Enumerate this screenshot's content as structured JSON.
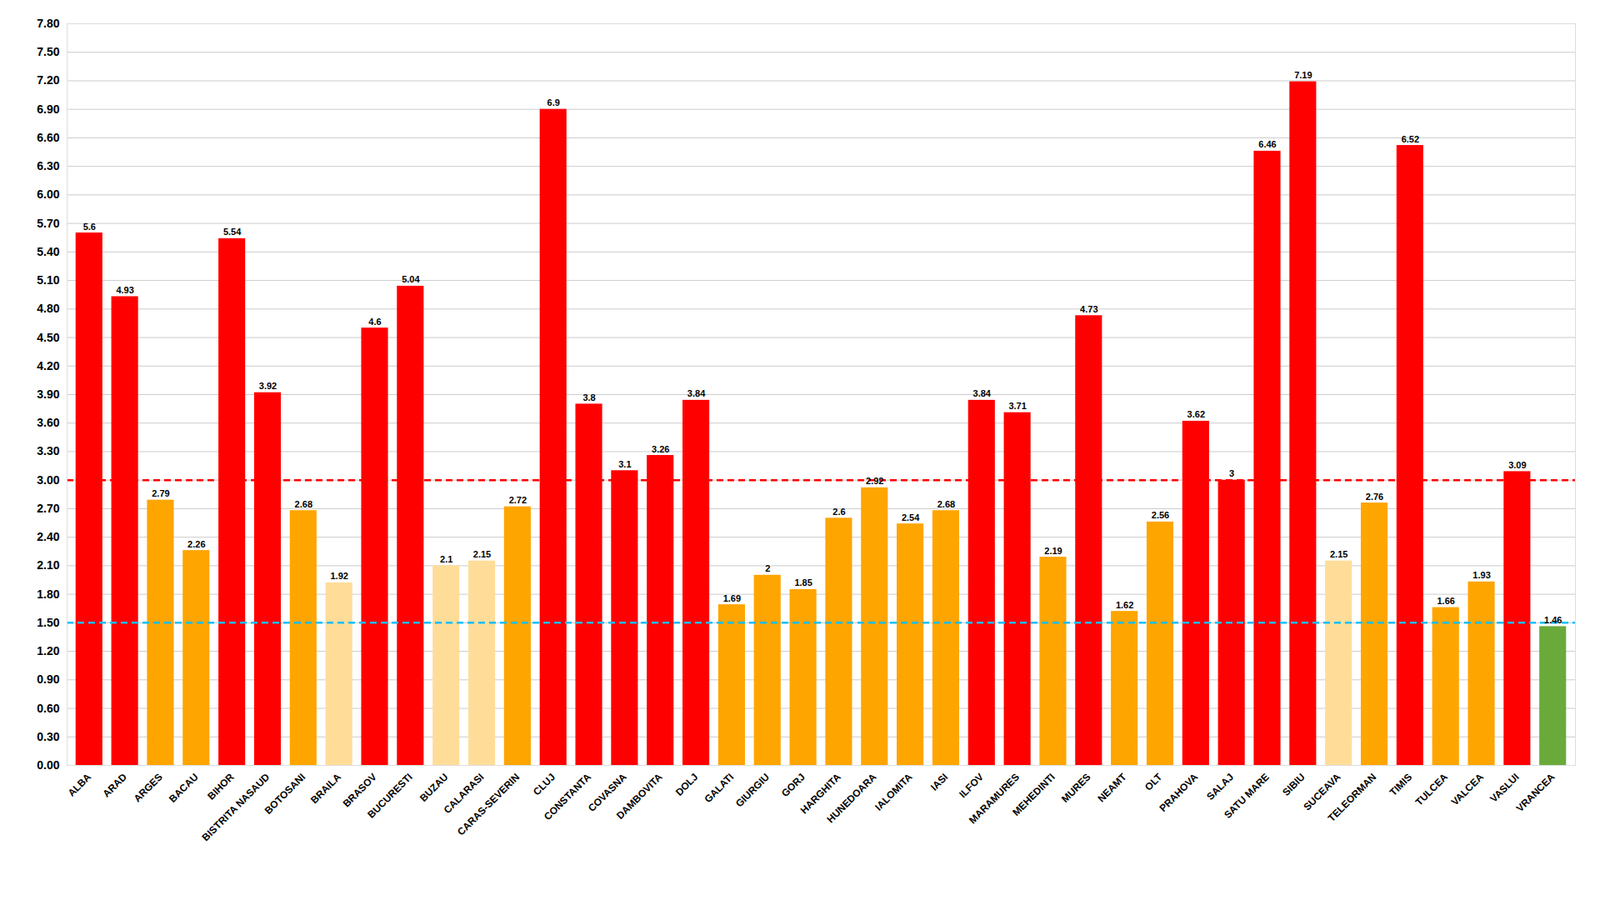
{
  "chart_data": {
    "type": "bar",
    "categories": [
      "ALBA",
      "ARAD",
      "ARGES",
      "BACAU",
      "BIHOR",
      "BISTRITA NASAUD",
      "BOTOSANI",
      "BRAILA",
      "BRASOV",
      "BUCURESTI",
      "BUZAU",
      "CALARASI",
      "CARAS-SEVERIN",
      "CLUJ",
      "CONSTANTA",
      "COVASNA",
      "DAMBOVITA",
      "DOLJ",
      "GALATI",
      "GIURGIU",
      "GORJ",
      "HARGHITA",
      "HUNEDOARA",
      "IALOMITA",
      "IASI",
      "ILFOV",
      "MARAMURES",
      "MEHEDINTI",
      "MURES",
      "NEAMT",
      "OLT",
      "PRAHOVA",
      "SALAJ",
      "SATU MARE",
      "SIBIU",
      "SUCEAVA",
      "TELEORMAN",
      "TIMIS",
      "TULCEA",
      "VALCEA",
      "VASLUI",
      "VRANCEA"
    ],
    "values": [
      5.6,
      4.93,
      2.79,
      2.26,
      5.54,
      3.92,
      2.68,
      1.92,
      4.6,
      5.04,
      2.1,
      2.15,
      2.72,
      6.9,
      3.8,
      3.1,
      3.26,
      3.84,
      1.69,
      2.0,
      1.85,
      2.6,
      2.92,
      2.54,
      2.68,
      3.84,
      3.71,
      2.19,
      4.73,
      1.62,
      2.56,
      3.62,
      3.0,
      6.46,
      7.19,
      2.15,
      2.76,
      6.52,
      1.66,
      1.93,
      3.09,
      1.46
    ],
    "colors": [
      "#FF0000",
      "#FF0000",
      "#FFA500",
      "#FFA500",
      "#FF0000",
      "#FF0000",
      "#FFA500",
      "#FFDD99",
      "#FF0000",
      "#FF0000",
      "#FFDD99",
      "#FFDD99",
      "#FFA500",
      "#FF0000",
      "#FF0000",
      "#FF0000",
      "#FF0000",
      "#FF0000",
      "#FFA500",
      "#FFA500",
      "#FFA500",
      "#FFA500",
      "#FFA500",
      "#FFA500",
      "#FFA500",
      "#FF0000",
      "#FF0000",
      "#FFA500",
      "#FF0000",
      "#FFA500",
      "#FFA500",
      "#FF0000",
      "#FF0000",
      "#FF0000",
      "#FF0000",
      "#FFDD99",
      "#FFA500",
      "#FF0000",
      "#FFA500",
      "#FFA500",
      "#FF0000",
      "#6aaa3a"
    ],
    "reference_lines": [
      {
        "value": 3.0,
        "color": "red"
      },
      {
        "value": 1.5,
        "color": "deepskyblue"
      }
    ],
    "ylim": [
      0,
      7.8
    ],
    "yticks": [
      {
        "value": 0.0,
        "label": "0.00"
      },
      {
        "value": 0.3,
        "label": "0.30"
      },
      {
        "value": 0.6,
        "label": "0.60"
      },
      {
        "value": 0.9,
        "label": "0.90"
      },
      {
        "value": 1.2,
        "label": "1.20"
      },
      {
        "value": 1.5,
        "label": "1.50"
      },
      {
        "value": 1.8,
        "label": "1.80"
      },
      {
        "value": 2.1,
        "label": "2.10"
      },
      {
        "value": 2.4,
        "label": "2.40"
      },
      {
        "value": 2.7,
        "label": "2.70"
      },
      {
        "value": 3.0,
        "label": "3.00"
      },
      {
        "value": 3.3,
        "label": "3.30"
      },
      {
        "value": 3.6,
        "label": "3.60"
      },
      {
        "value": 3.9,
        "label": "3.90"
      },
      {
        "value": 4.2,
        "label": "4.20"
      },
      {
        "value": 4.5,
        "label": "4.50"
      },
      {
        "value": 4.8,
        "label": "4.80"
      },
      {
        "value": 5.1,
        "label": "5.10"
      },
      {
        "value": 5.4,
        "label": "5.40"
      },
      {
        "value": 5.7,
        "label": "5.70"
      },
      {
        "value": 6.0,
        "label": "6.00"
      },
      {
        "value": 6.3,
        "label": "6.30"
      },
      {
        "value": 6.6,
        "label": "6.60"
      },
      {
        "value": 6.9,
        "label": "6.90"
      },
      {
        "value": 7.2,
        "label": "7.20"
      },
      {
        "value": 7.5,
        "label": "7.50"
      },
      {
        "value": 7.8,
        "label": "7.80"
      }
    ],
    "grid": true,
    "data_labels": true
  }
}
